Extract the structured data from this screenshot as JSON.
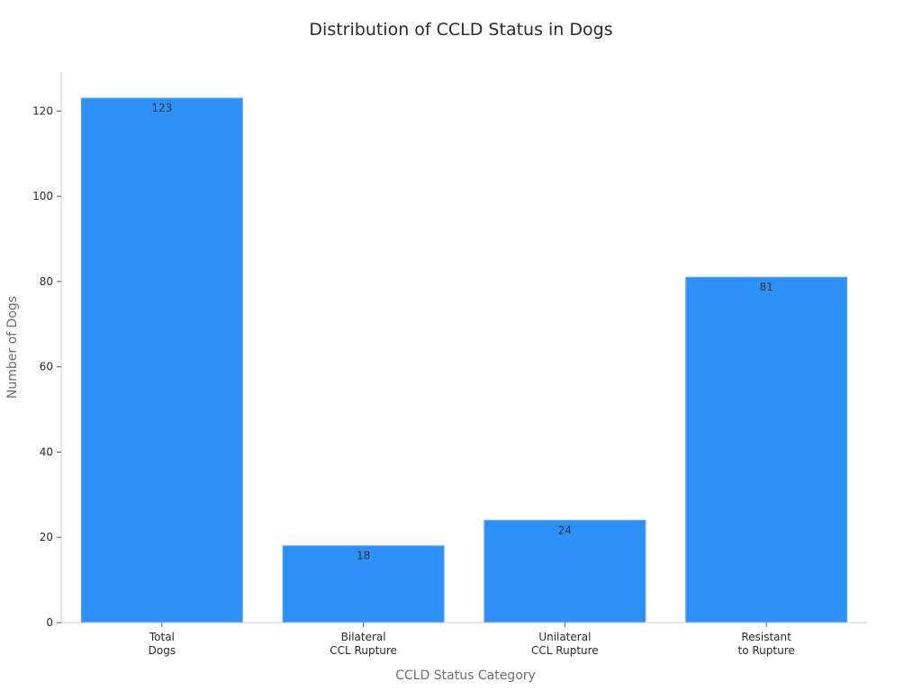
{
  "chart_data": {
    "type": "bar",
    "title": "Distribution of CCLD Status in Dogs",
    "xlabel": "CCLD Status Category",
    "ylabel": "Number of Dogs",
    "categories": [
      [
        "Total",
        "Dogs"
      ],
      [
        "Bilateral",
        "CCL Rupture"
      ],
      [
        "Unilateral",
        "CCL Rupture"
      ],
      [
        "Resistant",
        "to Rupture"
      ]
    ],
    "values": [
      123,
      18,
      24,
      81
    ],
    "data_labels": [
      "123",
      "18",
      "24",
      "81"
    ],
    "yticks": [
      0,
      20,
      40,
      60,
      80,
      100,
      120
    ],
    "ylim": [
      0,
      129.15
    ],
    "grid": false,
    "bar_color": "#2d91f7"
  }
}
